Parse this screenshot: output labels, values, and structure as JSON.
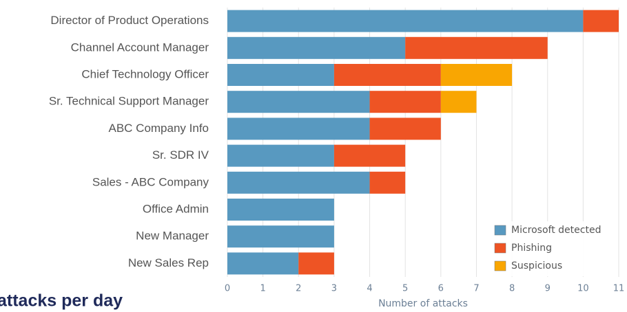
{
  "heading": "attacks per day",
  "chart_data": {
    "type": "stacked-barh",
    "xlabel": "Number of attacks",
    "categories": [
      "Director of Product Operations",
      "Channel Account Manager",
      "Chief Technology Officer",
      "Sr. Technical Support Manager",
      "ABC Company Info",
      "Sr. SDR IV",
      "Sales - ABC Company",
      "Office Admin",
      "New Manager",
      "New Sales Rep"
    ],
    "series": [
      {
        "name": "Microsoft detected",
        "color": "#5899c0",
        "values": [
          10,
          5,
          3,
          4,
          4,
          3,
          4,
          3,
          3,
          2
        ]
      },
      {
        "name": "Phishing",
        "color": "#ee5424",
        "values": [
          1,
          4,
          3,
          2,
          2,
          2,
          1,
          0,
          0,
          1
        ]
      },
      {
        "name": "Suspicious",
        "color": "#f9a602",
        "values": [
          0,
          0,
          2,
          1,
          0,
          0,
          0,
          0,
          0,
          0
        ]
      }
    ],
    "xlim": [
      0,
      11
    ],
    "xticks": [
      0,
      1,
      2,
      3,
      4,
      5,
      6,
      7,
      8,
      9,
      10,
      11
    ],
    "grid": true,
    "legend": "lower right"
  }
}
